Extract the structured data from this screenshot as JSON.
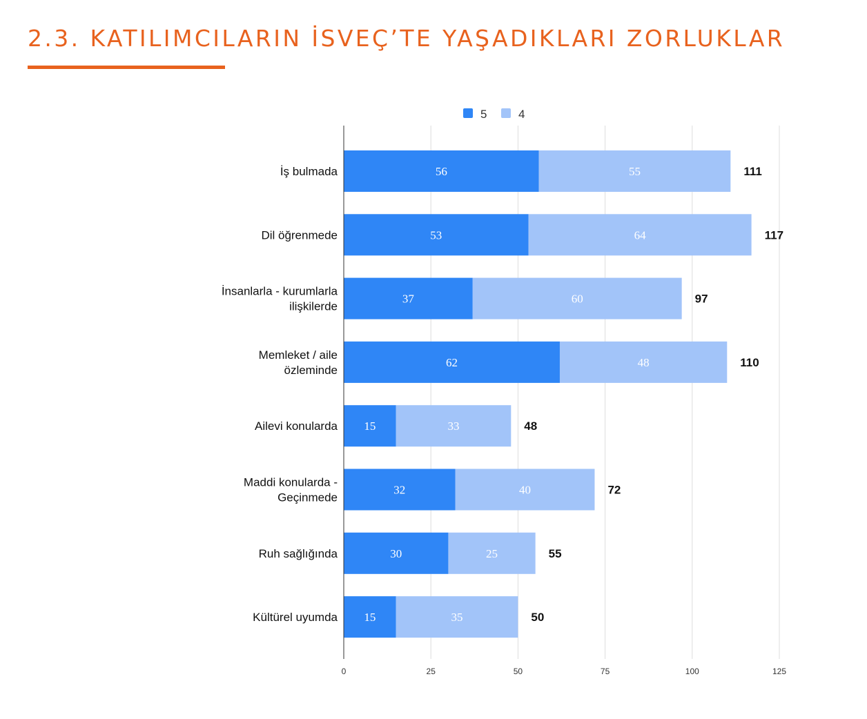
{
  "page": {
    "title": "2.3. KATILIMCILARIN İSVEÇ’TE YAŞADIKLARI ZORLUKLAR",
    "accent_color": "#e8621e"
  },
  "chart_data": {
    "type": "bar",
    "orientation": "horizontal",
    "stacked": true,
    "title": "",
    "xlabel": "",
    "ylabel": "",
    "categories": [
      [
        "İş bulmada"
      ],
      [
        "Dil öğrenmede"
      ],
      [
        "İnsanlarla - kurumlarla",
        "ilişkilerde"
      ],
      [
        "Memleket / aile",
        "özleminde"
      ],
      [
        "Ailevi konularda"
      ],
      [
        "Maddi konularda -",
        "Geçinmede"
      ],
      [
        "Ruh sağlığında"
      ],
      [
        "Kültürel uyumda"
      ]
    ],
    "series": [
      {
        "name": "5",
        "color": "#2f86f6",
        "values": [
          56,
          53,
          37,
          62,
          15,
          32,
          30,
          15
        ]
      },
      {
        "name": "4",
        "color": "#a2c4f9",
        "values": [
          55,
          64,
          60,
          48,
          33,
          40,
          25,
          35
        ]
      }
    ],
    "totals": [
      111,
      117,
      97,
      110,
      48,
      72,
      55,
      50
    ],
    "xlim": [
      0,
      125
    ],
    "xticks": [
      0,
      25,
      50,
      75,
      100,
      125
    ],
    "grid": "vertical",
    "legend_position": "top"
  }
}
